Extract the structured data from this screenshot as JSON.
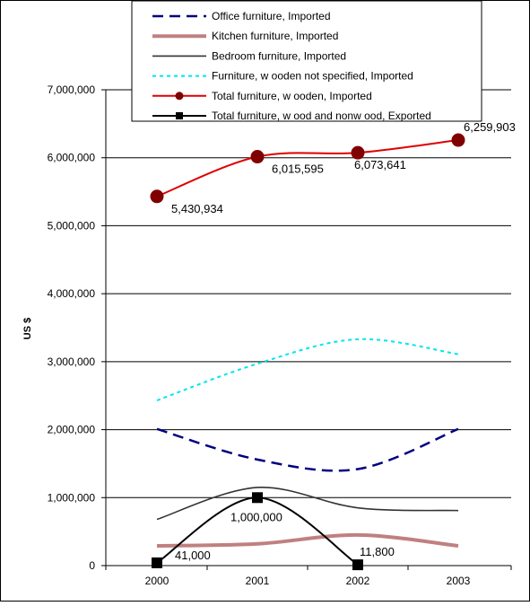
{
  "chart_data": {
    "type": "line",
    "title": "",
    "xlabel": "",
    "ylabel": "US $",
    "x": [
      "2000",
      "2001",
      "2002",
      "2003"
    ],
    "ylim": [
      0,
      7000000
    ],
    "yticks": [
      "0",
      "1,000,000",
      "2,000,000",
      "3,000,000",
      "4,000,000",
      "5,000,000",
      "6,000,000",
      "7,000,000"
    ],
    "grid": "horizontal",
    "legend_position": "top",
    "series": [
      {
        "name": "Office furniture, Imported",
        "values": [
          2010000,
          1560000,
          1420000,
          2010000
        ],
        "color": "#000080",
        "style": "dashed",
        "labels": []
      },
      {
        "name": "Kitchen furniture, Imported",
        "values": [
          290000,
          320000,
          450000,
          290000
        ],
        "color": "#C08080",
        "style": "thick",
        "labels": []
      },
      {
        "name": "Bedroom furniture, Imported",
        "values": [
          680000,
          1150000,
          850000,
          810000
        ],
        "color": "#333333",
        "style": "solid",
        "labels": []
      },
      {
        "name": "Furniture, w ooden not specified, Imported",
        "values": [
          2430000,
          2970000,
          3330000,
          3110000
        ],
        "color": "#00E5EE",
        "style": "dotted",
        "labels": []
      },
      {
        "name": "Total furniture, w ooden, Imported",
        "values": [
          5430934,
          6015595,
          6073641,
          6259903
        ],
        "color": "#E00000",
        "style": "circle",
        "labels": [
          "5,430,934",
          "6,015,595",
          "6,073,641",
          "6,259,903"
        ]
      },
      {
        "name": "Total furniture, w ood and nonw ood, Exported",
        "values": [
          41000,
          1000000,
          11800,
          null
        ],
        "color": "#000000",
        "style": "square",
        "labels": [
          "41,000",
          "1,000,000",
          "11,800",
          ""
        ]
      }
    ]
  }
}
